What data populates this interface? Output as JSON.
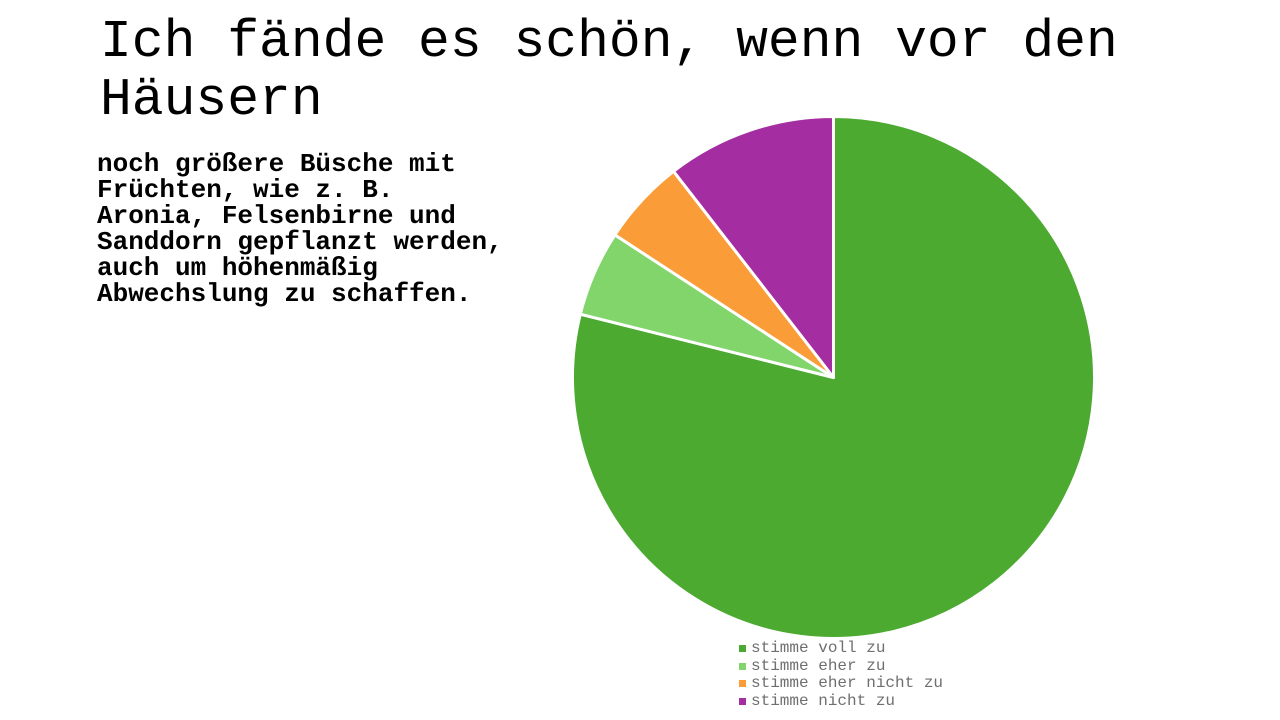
{
  "page": {
    "background": "#ffffff"
  },
  "header": {
    "title": "Ich fände es schön, wenn vor den Häusern",
    "subtitle": "noch größere Büsche mit Früchten, wie z. B. Aronia, Felsenbirne und Sanddorn gepflanzt werden, auch um höhenmäßig Abwechslung zu schaffen."
  },
  "chart_data": {
    "type": "pie",
    "title": "Ich fände es schön, wenn vor den Häusern",
    "subtitle": "noch größere Büsche mit Früchten, wie z. B. Aronia, Felsenbirne und Sanddorn gepflanzt werden, auch um höhenmäßig Abwechslung zu schaffen.",
    "categories": [
      "stimme voll zu",
      "stimme eher zu",
      "stimme eher nicht zu",
      "stimme nicht zu"
    ],
    "values_percent": [
      78.9,
      5.3,
      5.3,
      10.5
    ],
    "colors": [
      "#4CAA31",
      "#81D56A",
      "#FA9D38",
      "#A32DA1"
    ],
    "start_angle_deg": 0,
    "direction": "clockwise",
    "slice_border_color": "#ffffff",
    "slice_border_width": 3,
    "legend_position": "bottom",
    "legend_text_color": "#6F6F6F",
    "grid": false
  }
}
